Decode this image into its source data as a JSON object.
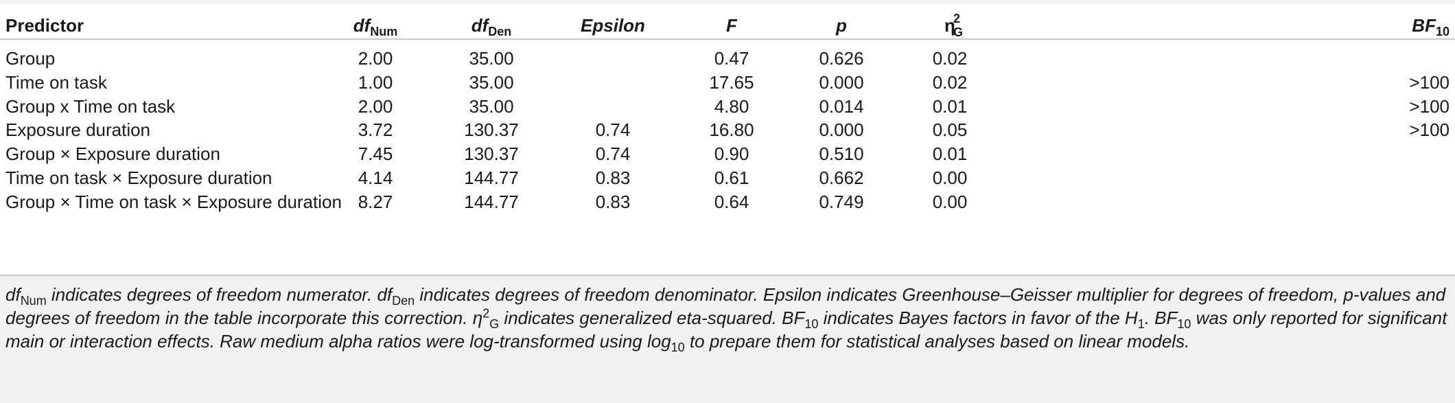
{
  "table": {
    "headers": {
      "predictor": "Predictor",
      "df_num": {
        "main": "df",
        "sub": "Num"
      },
      "df_den": {
        "main": "df",
        "sub": "Den"
      },
      "epsilon": "Epsilon",
      "f": "F",
      "p": "p",
      "eta": {
        "main": "η",
        "sup": "2",
        "sub": "G"
      },
      "bf": {
        "main": "BF",
        "sub": "10"
      }
    },
    "rows": [
      {
        "predictor": "Group",
        "df_num": "2.00",
        "df_den": "35.00",
        "epsilon": "",
        "f": "0.47",
        "p": "0.626",
        "eta": "0.02",
        "bf": ""
      },
      {
        "predictor": "Time on task",
        "df_num": "1.00",
        "df_den": "35.00",
        "epsilon": "",
        "f": "17.65",
        "p": "0.000",
        "eta": "0.02",
        "bf": ">100"
      },
      {
        "predictor": "Group x Time on task",
        "df_num": "2.00",
        "df_den": "35.00",
        "epsilon": "",
        "f": "4.80",
        "p": "0.014",
        "eta": "0.01",
        "bf": ">100"
      },
      {
        "predictor": "Exposure duration",
        "df_num": "3.72",
        "df_den": "130.37",
        "epsilon": "0.74",
        "f": "16.80",
        "p": "0.000",
        "eta": "0.05",
        "bf": ">100"
      },
      {
        "predictor": "Group × Exposure duration",
        "df_num": "7.45",
        "df_den": "130.37",
        "epsilon": "0.74",
        "f": "0.90",
        "p": "0.510",
        "eta": "0.01",
        "bf": ""
      },
      {
        "predictor": "Time on task × Exposure duration",
        "df_num": "4.14",
        "df_den": "144.77",
        "epsilon": "0.83",
        "f": "0.61",
        "p": "0.662",
        "eta": "0.00",
        "bf": ""
      },
      {
        "predictor": "Group × Time on task × Exposure duration",
        "df_num": "8.27",
        "df_den": "144.77",
        "epsilon": "0.83",
        "f": "0.64",
        "p": "0.749",
        "eta": "0.00",
        "bf": ""
      }
    ]
  },
  "footnote": {
    "s1": "df",
    "s1_sub": "Num",
    "s2": " indicates degrees of freedom numerator. df",
    "s2_sub": "Den",
    "s3": " indicates degrees of freedom denominator. Epsilon indicates Greenhouse–Geisser multiplier for degrees of freedom, p-values and degrees of freedom in the table incorporate this correction. ",
    "eta": "η",
    "eta_sup": "2",
    "eta_sub": "G",
    "s4": " indicates generalized eta-squared. BF",
    "s4_sub": "10",
    "s5": " indicates Bayes factors in favor of the H",
    "s5_sub": "1",
    "s6": ". BF",
    "s6_sub": "10",
    "s7": " was only reported for significant main or interaction effects. Raw medium alpha ratios were log-transformed using log",
    "s7_sub": "10",
    "s8": " to prepare them for statistical analyses based on linear models."
  }
}
